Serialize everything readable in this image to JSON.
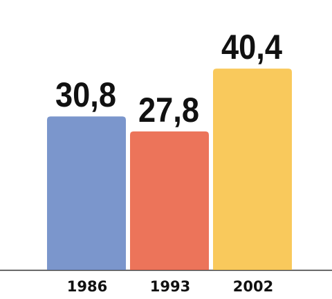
{
  "chart_data": {
    "type": "bar",
    "categories": [
      "1986",
      "1993",
      "2002"
    ],
    "values": [
      30.8,
      27.8,
      40.4
    ],
    "value_labels": [
      "30,8",
      "27,8",
      "40,4"
    ],
    "colors": [
      "#7b96cc",
      "#ec745a",
      "#f9c95c"
    ]
  }
}
